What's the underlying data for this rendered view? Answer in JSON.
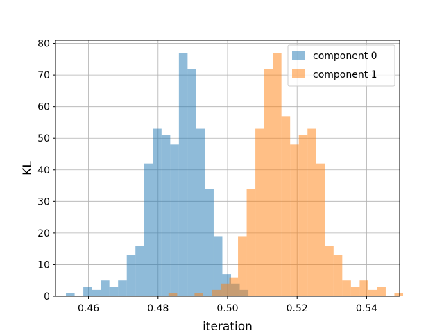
{
  "chart_data": {
    "type": "bar",
    "title": "",
    "xlabel": "iteration",
    "ylabel": "KL",
    "xlim": [
      0.4505,
      0.5495
    ],
    "ylim": [
      0,
      81
    ],
    "xticks": [
      0.46,
      0.48,
      0.5,
      0.52,
      0.54
    ],
    "xtick_labels": [
      "0.46",
      "0.48",
      "0.50",
      "0.52",
      "0.54"
    ],
    "yticks": [
      0,
      10,
      20,
      30,
      40,
      50,
      60,
      70,
      80
    ],
    "ytick_labels": [
      "0",
      "10",
      "20",
      "30",
      "40",
      "50",
      "60",
      "70",
      "80"
    ],
    "grid": true,
    "legend_position": "upper right",
    "series": [
      {
        "name": "component 0",
        "color": "#1f77b4",
        "opacity": 0.5,
        "bin_start": 0.4535,
        "bin_width": 0.0025,
        "values": [
          1,
          0,
          3,
          2,
          5,
          3,
          5,
          13,
          16,
          42,
          53,
          51,
          48,
          77,
          72,
          53,
          34,
          19,
          7,
          4,
          2
        ]
      },
      {
        "name": "component 1",
        "color": "#ff7f0e",
        "opacity": 0.5,
        "bin_start": 0.483,
        "bin_width": 0.0025,
        "values": [
          1,
          0,
          0,
          1,
          0,
          2,
          4,
          6,
          19,
          34,
          53,
          72,
          77,
          57,
          48,
          51,
          53,
          42,
          16,
          13,
          5,
          3,
          5,
          2,
          3,
          0,
          1
        ]
      }
    ]
  }
}
